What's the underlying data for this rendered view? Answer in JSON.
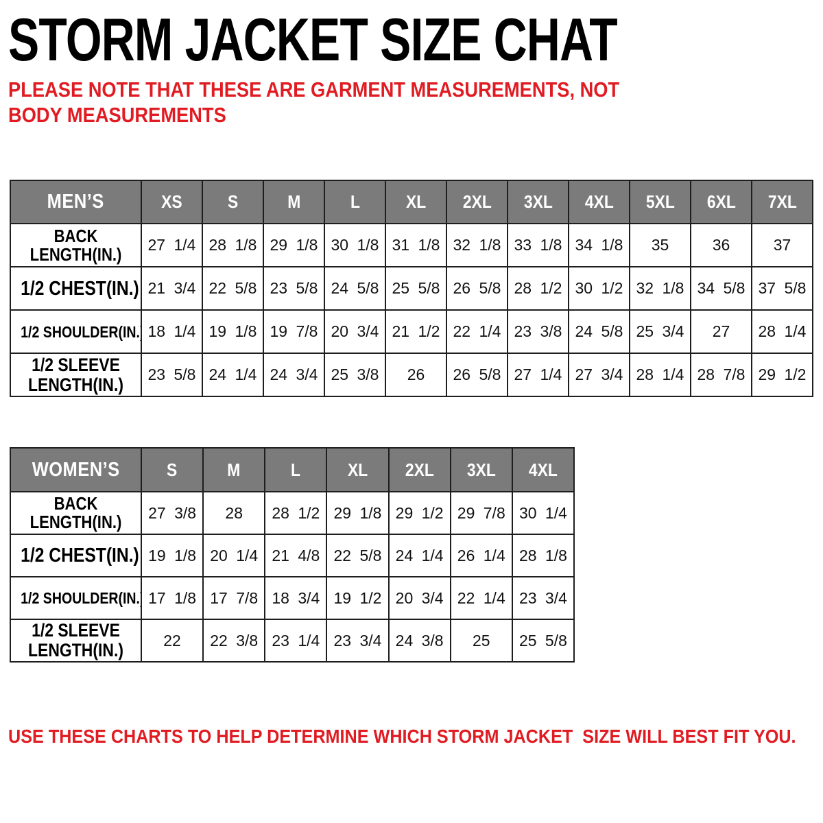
{
  "page": {
    "title": "STORM JACKET SIZE CHAT",
    "garment_note": "PLEASE NOTE THAT THESE ARE GARMENT MEASUREMENTS, NOT BODY MEASUREMENTS",
    "footer_note": "USE THESE CHARTS TO HELP DETERMINE WHICH STORM JACKET  SIZE WILL BEST FIT YOU."
  },
  "colors": {
    "header_bg": "#7b7b7b",
    "header_text": "#ffffff",
    "accent_red": "#e01b22",
    "border": "#1e1e1e"
  },
  "mens_table": {
    "corner_label": "MEN’S",
    "sizes": [
      "XS",
      "S",
      "M",
      "L",
      "XL",
      "2XL",
      "3XL",
      "4XL",
      "5XL",
      "6XL",
      "7XL"
    ],
    "rows": [
      {
        "label": "BACK LENGTH(IN.)",
        "label_lines": [
          "BACK",
          "LENGTH(IN.)"
        ],
        "values": [
          "27 1/4",
          "28 1/8",
          "29 1/8",
          "30 1/8",
          "31 1/8",
          "32 1/8",
          "33 1/8",
          "34 1/8",
          "35",
          "36",
          "37"
        ]
      },
      {
        "label": "1/2 CHEST(IN.)",
        "label_lines": [
          "1/2 CHEST(IN.)"
        ],
        "values": [
          "21 3/4",
          "22 5/8",
          "23 5/8",
          "24 5/8",
          "25 5/8",
          "26 5/8",
          "28 1/2",
          "30 1/2",
          "32 1/8",
          "34 5/8",
          "37 5/8"
        ]
      },
      {
        "label": "1/2 SHOULDER(IN.)",
        "label_lines": [
          "1/2 SHOULDER(IN.)"
        ],
        "values": [
          "18 1/4",
          "19 1/8",
          "19 7/8",
          "20 3/4",
          "21 1/2",
          "22 1/4",
          "23 3/8",
          "24 5/8",
          "25 3/4",
          "27",
          "28 1/4"
        ]
      },
      {
        "label": "1/2 SLEEVE LENGTH(IN.)",
        "label_lines": [
          "1/2 SLEEVE",
          "LENGTH(IN.)"
        ],
        "values": [
          "23 5/8",
          "24 1/4",
          "24 3/4",
          "25 3/8",
          "26",
          "26 5/8",
          "27 1/4",
          "27 3/4",
          "28 1/4",
          "28 7/8",
          "29 1/2"
        ]
      }
    ]
  },
  "womens_table": {
    "corner_label": "WOMEN’S",
    "sizes": [
      "S",
      "M",
      "L",
      "XL",
      "2XL",
      "3XL",
      "4XL"
    ],
    "rows": [
      {
        "label": "BACK LENGTH(IN.)",
        "label_lines": [
          "BACK",
          "LENGTH(IN.)"
        ],
        "values": [
          "27 3/8",
          "28",
          "28 1/2",
          "29 1/8",
          "29 1/2",
          "29 7/8",
          "30 1/4"
        ]
      },
      {
        "label": "1/2 CHEST(IN.)",
        "label_lines": [
          "1/2 CHEST(IN.)"
        ],
        "values": [
          "19 1/8",
          "20 1/4",
          "21 4/8",
          "22 5/8",
          "24 1/4",
          "26 1/4",
          "28 1/8"
        ]
      },
      {
        "label": "1/2 SHOULDER(IN.)",
        "label_lines": [
          "1/2 SHOULDER(IN.)"
        ],
        "values": [
          "17 1/8",
          "17 7/8",
          "18 3/4",
          "19 1/2",
          "20 3/4",
          "22 1/4",
          "23 3/4"
        ]
      },
      {
        "label": "1/2 SLEEVE LENGTH(IN.)",
        "label_lines": [
          "1/2 SLEEVE",
          "LENGTH(IN.)"
        ],
        "values": [
          "22",
          "22 3/8",
          "23 1/4",
          "23 3/4",
          "24 3/8",
          "25",
          "25 5/8"
        ]
      }
    ]
  }
}
